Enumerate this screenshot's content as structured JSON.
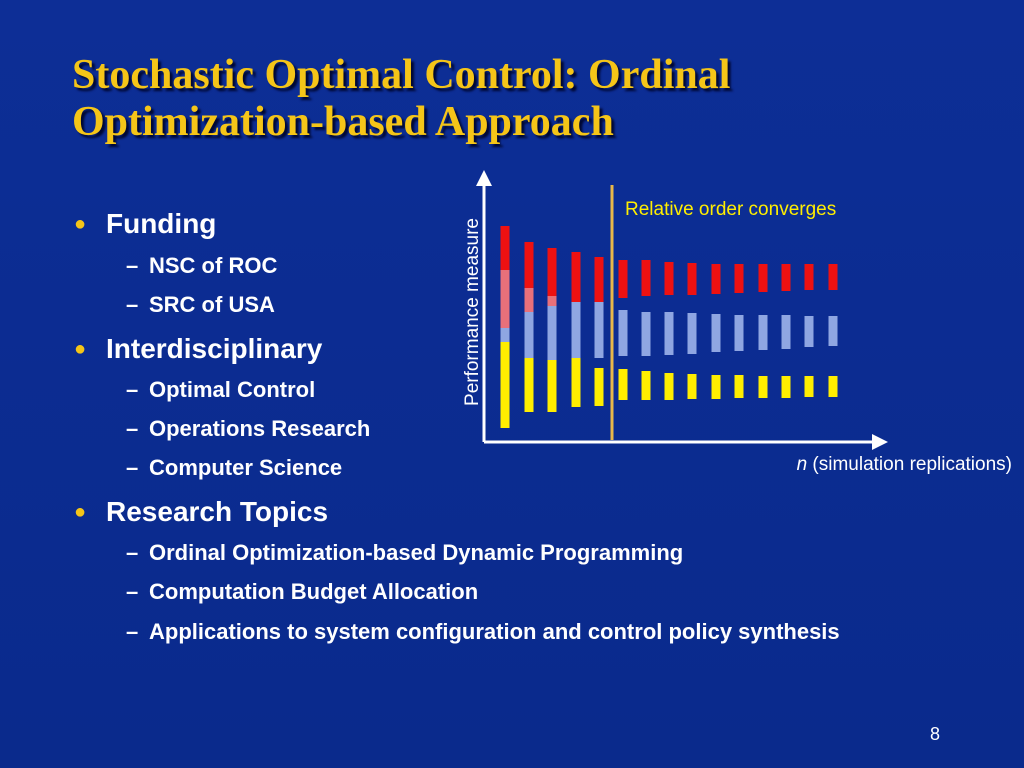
{
  "slide": {
    "title_line1": "Stochastic Optimal Control: Ordinal",
    "title_line2": "Optimization-based Approach",
    "page_number": "8"
  },
  "bullets": [
    {
      "level": 1,
      "text": "Funding"
    },
    {
      "level": 2,
      "text": "NSC of ROC"
    },
    {
      "level": 2,
      "text": "SRC of USA"
    },
    {
      "level": 1,
      "text": "Interdisciplinary"
    },
    {
      "level": 2,
      "text": "Optimal Control"
    },
    {
      "level": 2,
      "text": "Operations Research"
    },
    {
      "level": 2,
      "text": "Computer Science"
    },
    {
      "level": 1,
      "text": "Research Topics"
    },
    {
      "level": 2,
      "text": "Ordinal Optimization-based Dynamic Programming"
    },
    {
      "level": 2,
      "text": "Computation Budget Allocation"
    },
    {
      "level": 2,
      "text": "Applications to  system configuration and control policy synthesis"
    }
  ],
  "diagram": {
    "y_axis_label": "Performance measure",
    "x_axis_label_var": "n",
    "x_axis_label_rest": " (simulation replications)",
    "annotation": "Relative order converges",
    "colors": {
      "red": "#ee1111",
      "blue": "#8fa6e2",
      "yellow": "#ffee00",
      "pink": "#e8707a",
      "gold_line": "#e8b84a",
      "axis": "#ffffff"
    }
  }
}
